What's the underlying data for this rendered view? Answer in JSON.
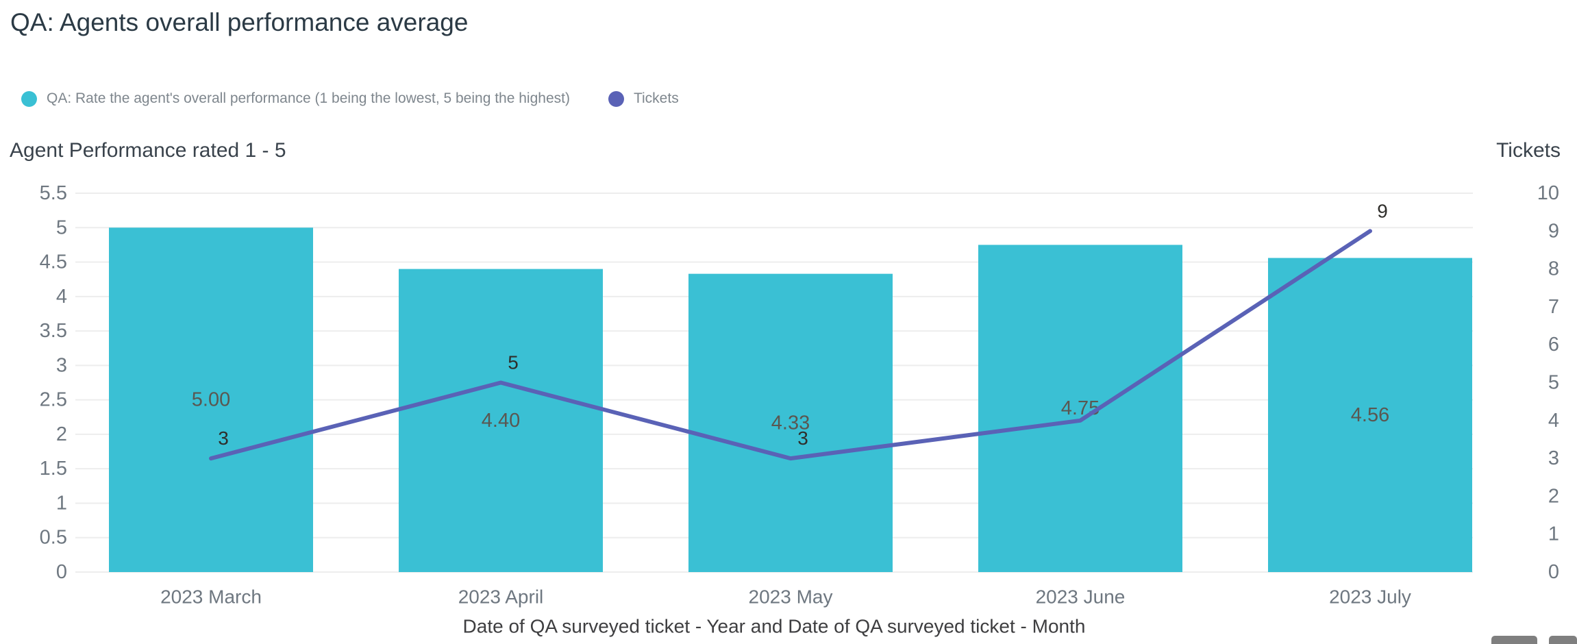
{
  "header": {
    "title": "QA: Agents overall performance average"
  },
  "legend": {
    "items": [
      {
        "label": "QA: Rate the agent's overall performance (1 being the lowest, 5 being the highest)",
        "color": "#3ac0d4"
      },
      {
        "label": "Tickets",
        "color": "#5a62b6"
      }
    ]
  },
  "chart_data": {
    "type": "combo-bar-line",
    "title": "QA: Agents overall performance average",
    "categories": [
      "2023 March",
      "2023 April",
      "2023 May",
      "2023 June",
      "2023 July"
    ],
    "series": [
      {
        "name": "QA: Rate the agent's overall performance (1 being the lowest, 5 being the highest)",
        "type": "bar",
        "axis": "left",
        "color": "#3ac0d4",
        "values": [
          5.0,
          4.4,
          4.33,
          4.75,
          4.56
        ],
        "value_labels": [
          "5.00",
          "4.40",
          "4.33",
          "4.75",
          "4.56"
        ]
      },
      {
        "name": "Tickets",
        "type": "line",
        "axis": "right",
        "color": "#5a62b6",
        "values": [
          3,
          5,
          3,
          4,
          9
        ],
        "value_labels": [
          "3",
          "5",
          "3",
          "",
          "9"
        ]
      }
    ],
    "left_axis": {
      "title": "Agent Performance rated 1 - 5",
      "min": 0,
      "max": 5.5,
      "tick_step": 0.5,
      "tick_labels": [
        "0",
        "0.5",
        "1",
        "1.5",
        "2",
        "2.5",
        "3",
        "3.5",
        "4",
        "4.5",
        "5",
        "5.5"
      ]
    },
    "right_axis": {
      "title": "Tickets",
      "min": 0,
      "max": 10,
      "tick_step": 1,
      "tick_labels": [
        "0",
        "1",
        "2",
        "3",
        "4",
        "5",
        "6",
        "7",
        "8",
        "9",
        "10"
      ]
    },
    "xlabel": "Date of QA surveyed ticket - Year and Date of QA surveyed ticket - Month",
    "grid": true,
    "grid_color": "#ededed",
    "legend_position": "top"
  }
}
